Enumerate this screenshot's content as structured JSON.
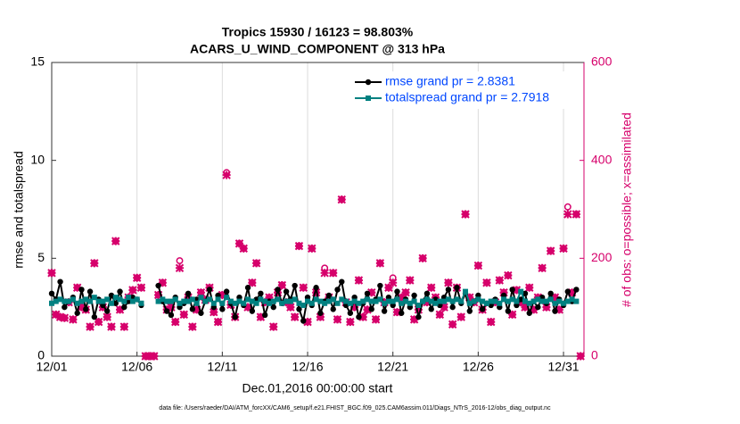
{
  "chart_data": {
    "type": "line",
    "title": "Tropics 15930 / 16123 = 98.803%",
    "subtitle": "ACARS_U_WIND_COMPONENT @ 313 hPa",
    "xlabel": "Dec.01,2016 00:00:00 start",
    "ylabel": "rmse and totalspread",
    "y2label": "# of obs: o=possible; x=assimilated",
    "footnote": "data file: /Users/raeder/DAI/ATM_forcXX/CAM6_setup/f.e21.FHIST_BGC.f09_025.CAM6assim.011/Diags_NTrS_2016-12/obs_diag_output.nc",
    "xlim": [
      0,
      31.2
    ],
    "xticks": [
      {
        "value": 0,
        "label": "12/01"
      },
      {
        "value": 5,
        "label": "12/06"
      },
      {
        "value": 10,
        "label": "12/11"
      },
      {
        "value": 15,
        "label": "12/16"
      },
      {
        "value": 20,
        "label": "12/21"
      },
      {
        "value": 25,
        "label": "12/26"
      },
      {
        "value": 30,
        "label": "12/31"
      }
    ],
    "ylim": [
      0,
      15
    ],
    "yticks": [
      0,
      5,
      10,
      15
    ],
    "y2lim": [
      0,
      600
    ],
    "y2ticks": [
      0,
      200,
      400,
      600
    ],
    "xgrid": true,
    "legend": "upper right",
    "x": [
      0,
      0.25,
      0.5,
      0.75,
      1,
      1.25,
      1.5,
      1.75,
      2,
      2.25,
      2.5,
      2.75,
      3,
      3.25,
      3.5,
      3.75,
      4,
      4.25,
      4.5,
      4.75,
      5,
      5.25,
      5.5,
      5.75,
      6,
      6.25,
      6.5,
      6.75,
      7,
      7.25,
      7.5,
      7.75,
      8,
      8.25,
      8.5,
      8.75,
      9,
      9.25,
      9.5,
      9.75,
      10,
      10.25,
      10.5,
      10.75,
      11,
      11.25,
      11.5,
      11.75,
      12,
      12.25,
      12.5,
      12.75,
      13,
      13.25,
      13.5,
      13.75,
      14,
      14.25,
      14.5,
      14.75,
      15,
      15.25,
      15.5,
      15.75,
      16,
      16.25,
      16.5,
      16.75,
      17,
      17.25,
      17.5,
      17.75,
      18,
      18.25,
      18.5,
      18.75,
      19,
      19.25,
      19.5,
      19.75,
      20,
      20.25,
      20.5,
      20.75,
      21,
      21.25,
      21.5,
      21.75,
      22,
      22.25,
      22.5,
      22.75,
      23,
      23.25,
      23.5,
      23.75,
      24,
      24.25,
      24.5,
      24.75,
      25,
      25.25,
      25.5,
      25.75,
      26,
      26.25,
      26.5,
      26.75,
      27,
      27.25,
      27.5,
      27.75,
      28,
      28.25,
      28.5,
      28.75,
      29,
      29.25,
      29.5,
      29.75,
      30,
      30.25,
      30.5,
      30.75,
      31
    ],
    "series": [
      {
        "name": "rmse grand pr = 2.8381",
        "color": "#000000",
        "marker": "dot",
        "values": [
          3.2,
          2.9,
          3.8,
          2.5,
          2.8,
          3.0,
          2.2,
          3.4,
          2.4,
          3.3,
          2.0,
          2.9,
          2.6,
          2.3,
          3.1,
          2.7,
          3.3,
          2.5,
          2.8,
          3.0,
          2.9,
          2.6,
          null,
          null,
          null,
          3.6,
          2.8,
          2.3,
          2.1,
          3.0,
          2.5,
          2.7,
          3.2,
          2.4,
          2.9,
          2.2,
          2.8,
          3.4,
          2.5,
          3.1,
          2.4,
          3.3,
          2.7,
          2.0,
          3.0,
          2.6,
          3.5,
          2.3,
          2.9,
          3.2,
          2.1,
          2.8,
          2.5,
          3.4,
          2.7,
          3.3,
          2.9,
          3.6,
          2.4,
          1.8,
          3.0,
          2.6,
          3.5,
          2.2,
          2.8,
          3.1,
          2.4,
          3.4,
          3.8,
          2.6,
          2.2,
          3.0,
          2.0,
          2.7,
          3.2,
          2.4,
          2.9,
          3.6,
          2.3,
          3.0,
          2.6,
          3.3,
          2.2,
          2.9,
          2.5,
          3.1,
          2.0,
          2.8,
          3.2,
          2.4,
          2.9,
          2.6,
          3.0,
          3.4,
          2.5,
          3.5,
          2.7,
          3.2,
          2.3,
          2.8,
          3.1,
          2.4,
          2.7,
          2.6,
          2.9,
          2.5,
          3.1,
          2.3,
          3.4,
          2.6,
          2.9,
          3.2,
          2.2,
          2.8,
          2.5,
          3.0,
          2.7,
          3.2,
          2.3,
          2.9,
          2.6,
          3.3,
          2.8,
          3.4,
          null
        ]
      },
      {
        "name": "totalspread grand pr = 2.7918",
        "color": "#008080",
        "marker": "square",
        "values": [
          2.7,
          2.8,
          2.9,
          2.8,
          2.8,
          2.9,
          2.7,
          2.8,
          2.9,
          2.8,
          3.0,
          2.8,
          2.8,
          2.9,
          2.7,
          3.0,
          2.9,
          2.8,
          3.0,
          2.8,
          2.9,
          2.7,
          null,
          null,
          null,
          2.8,
          2.9,
          2.8,
          2.8,
          2.9,
          2.7,
          2.8,
          2.8,
          2.9,
          2.7,
          3.0,
          2.8,
          2.9,
          2.7,
          2.9,
          2.7,
          3.0,
          2.8,
          2.7,
          2.8,
          2.7,
          2.9,
          2.8,
          2.7,
          2.9,
          2.8,
          2.7,
          2.8,
          2.9,
          2.7,
          2.8,
          2.8,
          2.9,
          2.7,
          2.6,
          2.8,
          2.7,
          2.9,
          2.8,
          2.7,
          2.8,
          2.9,
          2.7,
          2.9,
          2.8,
          2.7,
          2.8,
          2.7,
          2.8,
          2.9,
          2.8,
          2.8,
          2.9,
          2.7,
          2.8,
          2.8,
          2.9,
          2.7,
          2.8,
          2.7,
          2.8,
          2.6,
          2.8,
          2.9,
          2.8,
          2.7,
          2.8,
          2.8,
          2.9,
          2.8,
          2.9,
          2.8,
          3.3,
          2.7,
          2.8,
          2.9,
          2.8,
          2.7,
          2.8,
          2.8,
          2.7,
          2.9,
          2.8,
          2.9,
          2.8,
          3.3,
          2.8,
          2.7,
          2.8,
          2.9,
          2.8,
          2.8,
          2.9,
          2.7,
          2.8,
          2.7,
          2.8,
          2.9,
          2.8,
          null
        ]
      },
      {
        "color": "#d6006b",
        "marker": "circle",
        "axis": "y2",
        "values": [
          170,
          85,
          80,
          78,
          110,
          75,
          140,
          100,
          95,
          60,
          190,
          70,
          100,
          80,
          60,
          235,
          95,
          60,
          120,
          135,
          160,
          140,
          0,
          0,
          0,
          125,
          150,
          95,
          100,
          70,
          195,
          85,
          120,
          60,
          95,
          130,
          115,
          140,
          90,
          70,
          125,
          375,
          105,
          80,
          230,
          220,
          100,
          150,
          190,
          80,
          110,
          120,
          60,
          130,
          145,
          110,
          100,
          80,
          225,
          140,
          70,
          220,
          130,
          80,
          180,
          120,
          170,
          75,
          320,
          110,
          70,
          100,
          155,
          80,
          95,
          130,
          75,
          190,
          110,
          140,
          160,
          90,
          120,
          130,
          155,
          75,
          95,
          200,
          110,
          140,
          120,
          85,
          100,
          150,
          65,
          140,
          80,
          290,
          120,
          110,
          185,
          95,
          150,
          70,
          110,
          155,
          130,
          165,
          85,
          135,
          110,
          100,
          140,
          95,
          120,
          180,
          100,
          215,
          120,
          95,
          220,
          305,
          130,
          290,
          0
        ]
      },
      {
        "color": "#d6006b",
        "marker": "asterisk",
        "axis": "y2",
        "values": [
          170,
          85,
          80,
          78,
          110,
          75,
          140,
          100,
          95,
          60,
          190,
          70,
          100,
          80,
          60,
          235,
          95,
          60,
          120,
          135,
          160,
          140,
          0,
          0,
          0,
          125,
          150,
          95,
          100,
          70,
          180,
          85,
          120,
          60,
          95,
          130,
          115,
          140,
          90,
          70,
          125,
          370,
          105,
          80,
          230,
          220,
          100,
          150,
          190,
          80,
          110,
          120,
          60,
          130,
          145,
          110,
          100,
          80,
          225,
          140,
          70,
          220,
          130,
          80,
          170,
          120,
          170,
          75,
          320,
          110,
          70,
          100,
          155,
          80,
          95,
          130,
          75,
          190,
          110,
          140,
          150,
          90,
          120,
          130,
          155,
          75,
          95,
          200,
          110,
          140,
          120,
          85,
          100,
          150,
          65,
          140,
          80,
          290,
          120,
          110,
          185,
          95,
          150,
          70,
          110,
          155,
          130,
          165,
          85,
          135,
          110,
          100,
          140,
          95,
          120,
          180,
          100,
          215,
          120,
          95,
          220,
          290,
          130,
          290,
          0
        ]
      }
    ]
  }
}
